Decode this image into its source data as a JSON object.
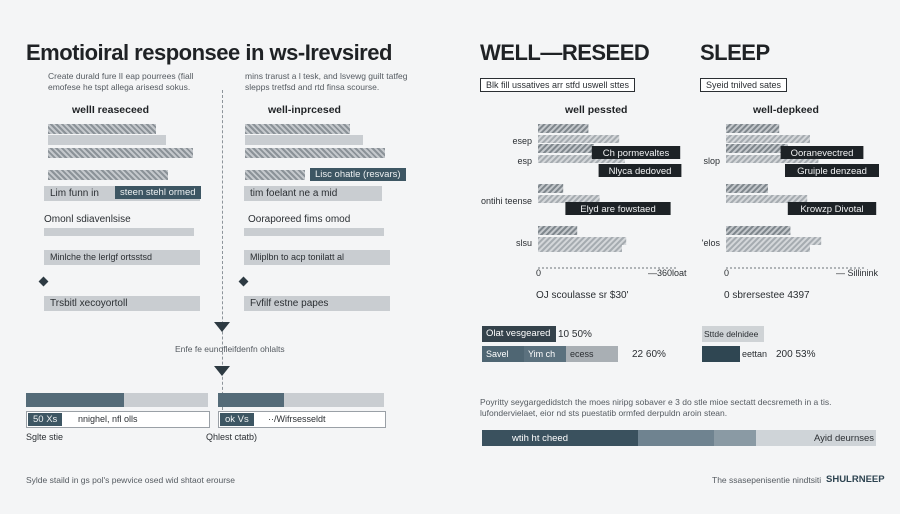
{
  "left": {
    "title": "Emotioiral responsee  in ws-Irevsired",
    "desc_a": "Create durald fure lI eap pourrees (fiall emofese he tspt allega arisesd sokus.",
    "desc_b": "mins trarust a l tesk, and lsvewg guilt tatfeg slepps tretfsd and rtd finsa scourse.",
    "col_a_header": "wellI reaseceed",
    "col_b_header": "well-inprcesed",
    "col_a_rows": [
      "Lim funn in",
      "Omonl sdiavenlsise",
      "Minlche  the  lerlgf ortsstsd",
      "Trsbitl xecoyortoll"
    ],
    "col_b_rows": [
      "tim foelant ne a mid",
      "Ooraporeed fims omod",
      "Mliplbn to  acp tonilatt al",
      "Fvfilf estne papes"
    ],
    "col_a_tag": "steen stehl ormed",
    "col_b_tag": "Lisc ohatle (resvars)",
    "flow_label": "Enfe fe eunofleifdenfn ohlalts",
    "bottom_a_tag": "50 Xs",
    "bottom_a_text": "nnighel, nfl olls",
    "bottom_b_tag": "ok Vs",
    "bottom_b_text": "··/Wifrsesseldt",
    "bottom_a_label": "Sglte stie",
    "bottom_b_label": "Qhlest ctatb)"
  },
  "panels": {
    "well": {
      "title": "WELL—RESEED",
      "tag": "Blk fill ussatives arr stfd uswell sttes",
      "header": "well pessted",
      "ylabels": [
        "esep",
        "esp",
        "ontihi teense",
        "slsu"
      ],
      "callouts": [
        "Ch pormevaltes",
        "Nlyca dedoved",
        "Elyd are fowstaed"
      ],
      "axis_min": "0",
      "axis_max_label": "—360loat",
      "caption": "OJ scoulasse sr $30'"
    },
    "sleep": {
      "title": "SLEEP",
      "tag": "Syeid tnilved sates",
      "header": "well-depkeed",
      "ylabels": [
        "",
        "slop",
        "",
        "'elos"
      ],
      "callouts": [
        "Ooranevectred",
        "Gruiple denzead",
        "Krowzp Divotal"
      ],
      "axis_min": "0",
      "axis_max_label": "— Sillinink",
      "caption": "0  sbrersestee 4397"
    }
  },
  "stats": {
    "well": [
      {
        "label": "Olat vesgeared",
        "value": "10 50%"
      },
      {
        "label": "Savel",
        "label2": "Yim ch",
        "label3": "ecess",
        "value": "22 60%"
      }
    ],
    "sleep": [
      {
        "label": "Sttde delnidee",
        "value": ""
      },
      {
        "label": "",
        "label2": "eettan",
        "value": "200 53%"
      }
    ]
  },
  "paragraph": "Poyritty seygargedidstch the moes niripg sobaver e 3 do stle mioe sectatt decsremeth in a tis.\nlufondervielaet, eior nd sts puestatib ormfed derpuldn aroin stean.",
  "bottom_bar": {
    "left_label": "wtih ht cheed",
    "right_label": "Ayid deurnses"
  },
  "footer_left": "Sylde staild in gs pol's pewvice osed wid shtaot erourse",
  "footer_right_text": "The ssasepenisentie nindtsiti",
  "footer_brand": "SHULRNEEP",
  "chart_data": [
    {
      "type": "bar",
      "title": "WELL—RESEED",
      "categories": [
        "esep",
        "esp",
        "ontihi teense",
        "slsu"
      ],
      "series": [
        {
          "values": [
            36,
            40,
            18,
            28
          ]
        },
        {
          "values": [
            58,
            62,
            44,
            63
          ]
        }
      ],
      "xlim": [
        0,
        360
      ]
    },
    {
      "type": "bar",
      "title": "SLEEP",
      "categories": [
        "",
        "slop",
        "",
        "'elos"
      ],
      "series": [
        {
          "values": [
            38,
            44,
            30,
            46
          ]
        },
        {
          "values": [
            60,
            66,
            58,
            68
          ]
        }
      ],
      "xlim": [
        0,
        360
      ]
    }
  ]
}
